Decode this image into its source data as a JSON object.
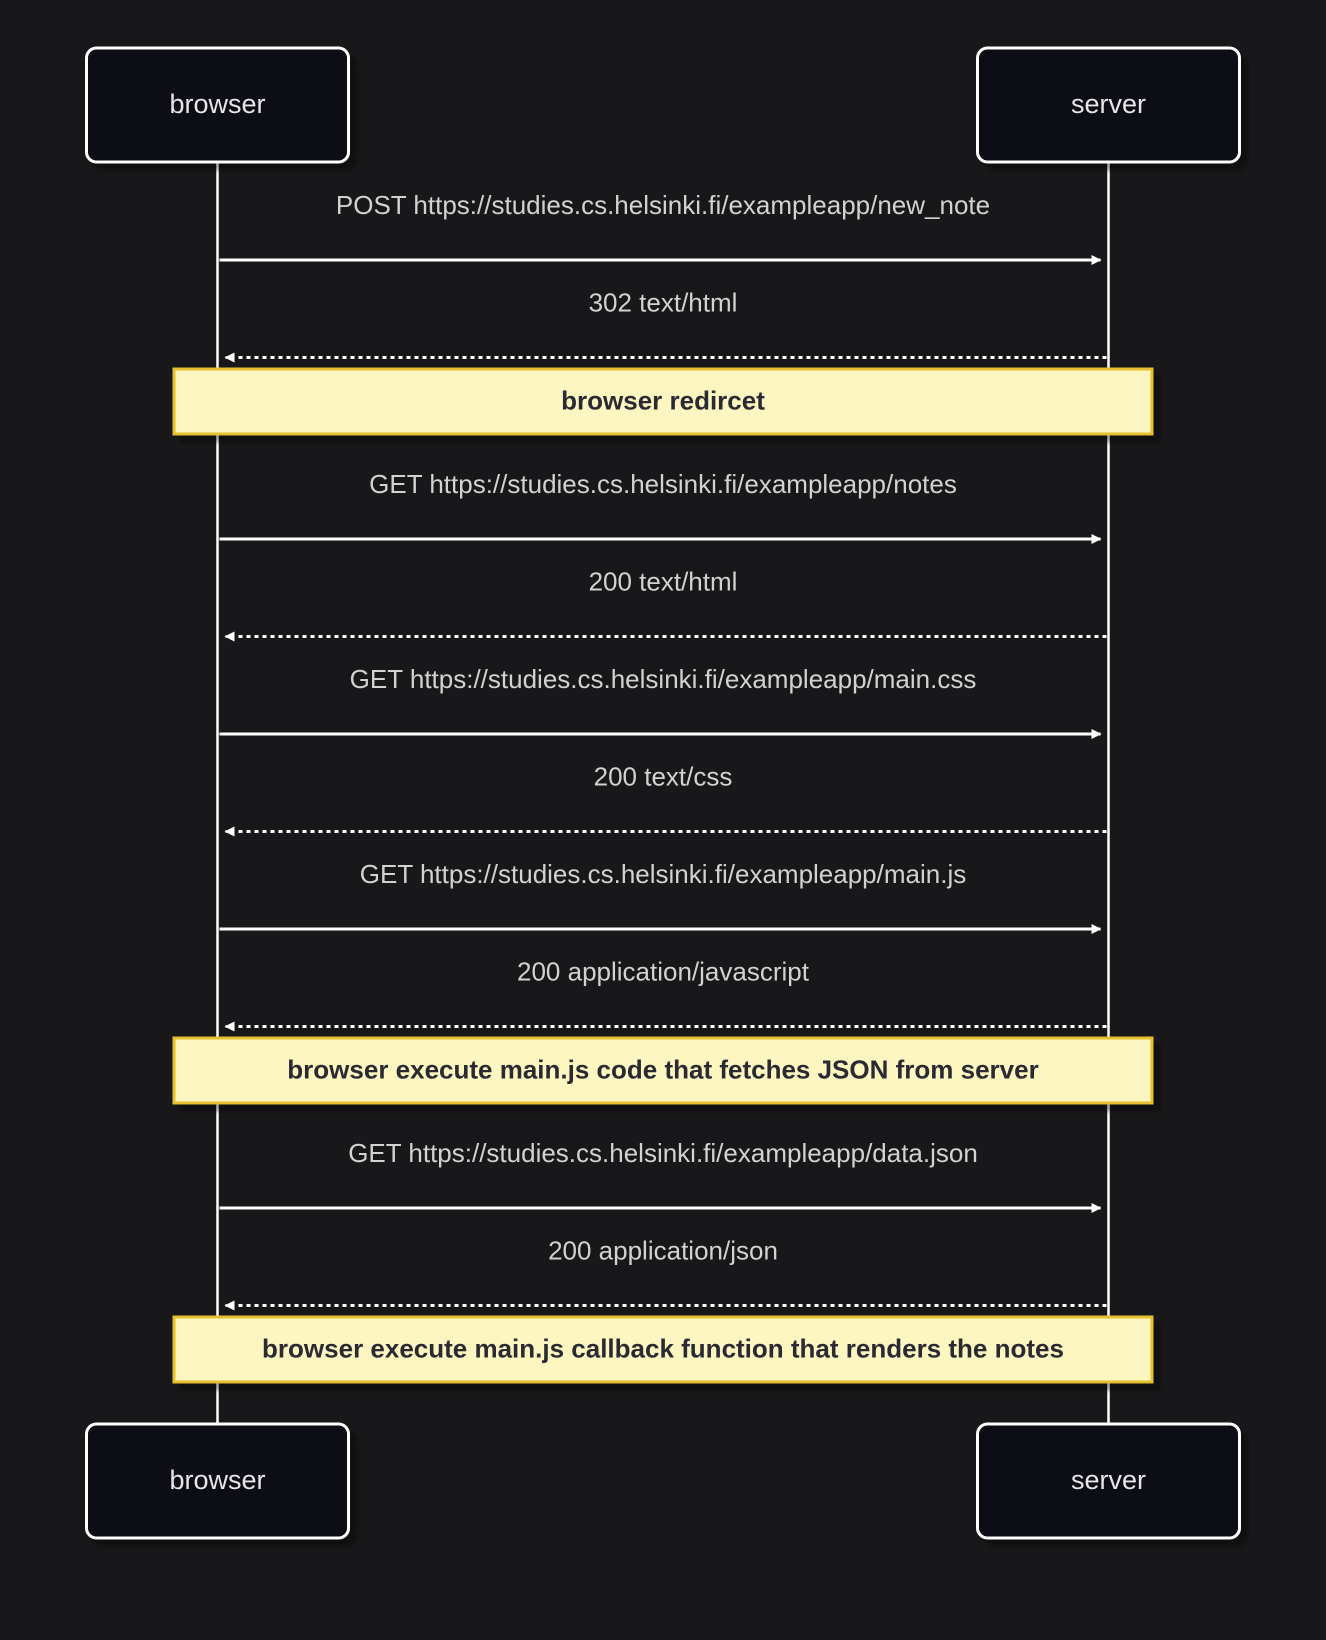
{
  "colors": {
    "background": "#18181a",
    "actor_fill": "#0c0d15",
    "actor_stroke": "#ffffff",
    "actor_text": "#e6e6e6",
    "line": "#ffffff",
    "message_text": "#d2d2d2",
    "note_fill": "#fdf6c0",
    "note_stroke": "#e6c02e",
    "note_text": "#2a2a33"
  },
  "actors": [
    {
      "id": "browser",
      "label": "browser"
    },
    {
      "id": "server",
      "label": "server"
    }
  ],
  "sequence": [
    {
      "kind": "message",
      "from": "browser",
      "to": "server",
      "style": "solid",
      "label": "POST https://studies.cs.helsinki.fi/exampleapp/new_note"
    },
    {
      "kind": "message",
      "from": "server",
      "to": "browser",
      "style": "dotted",
      "label": "302 text/html"
    },
    {
      "kind": "note",
      "label": "browser redircet"
    },
    {
      "kind": "message",
      "from": "browser",
      "to": "server",
      "style": "solid",
      "label": "GET https://studies.cs.helsinki.fi/exampleapp/notes"
    },
    {
      "kind": "message",
      "from": "server",
      "to": "browser",
      "style": "dotted",
      "label": "200 text/html"
    },
    {
      "kind": "message",
      "from": "browser",
      "to": "server",
      "style": "solid",
      "label": "GET https://studies.cs.helsinki.fi/exampleapp/main.css"
    },
    {
      "kind": "message",
      "from": "server",
      "to": "browser",
      "style": "dotted",
      "label": "200 text/css"
    },
    {
      "kind": "message",
      "from": "browser",
      "to": "server",
      "style": "solid",
      "label": "GET https://studies.cs.helsinki.fi/exampleapp/main.js"
    },
    {
      "kind": "message",
      "from": "server",
      "to": "browser",
      "style": "dotted",
      "label": "200 application/javascript"
    },
    {
      "kind": "note",
      "label": "browser execute main.js code that fetches JSON from server"
    },
    {
      "kind": "message",
      "from": "browser",
      "to": "server",
      "style": "solid",
      "label": "GET https://studies.cs.helsinki.fi/exampleapp/data.json"
    },
    {
      "kind": "message",
      "from": "server",
      "to": "browser",
      "style": "dotted",
      "label": "200 application/json"
    },
    {
      "kind": "note",
      "label": "browser execute main.js callback function that renders the notes"
    }
  ]
}
